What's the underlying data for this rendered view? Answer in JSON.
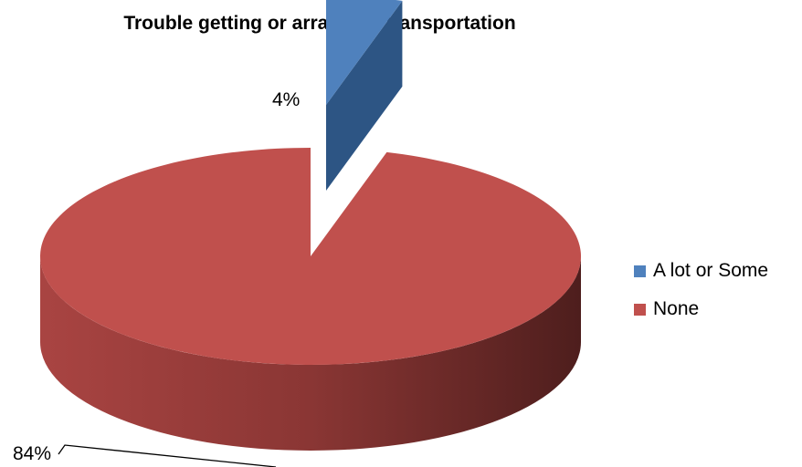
{
  "chart_data": {
    "type": "pie",
    "title": "Trouble getting or arranging transportation",
    "slices": [
      {
        "name": "A lot or Some",
        "value": 4,
        "label": "4%",
        "color": "#4F81BD",
        "exploded": true
      },
      {
        "name": "None",
        "value": 84,
        "label": "84%",
        "color": "#C0504D",
        "exploded": false
      }
    ],
    "legend_position": "right",
    "style": "3d"
  }
}
